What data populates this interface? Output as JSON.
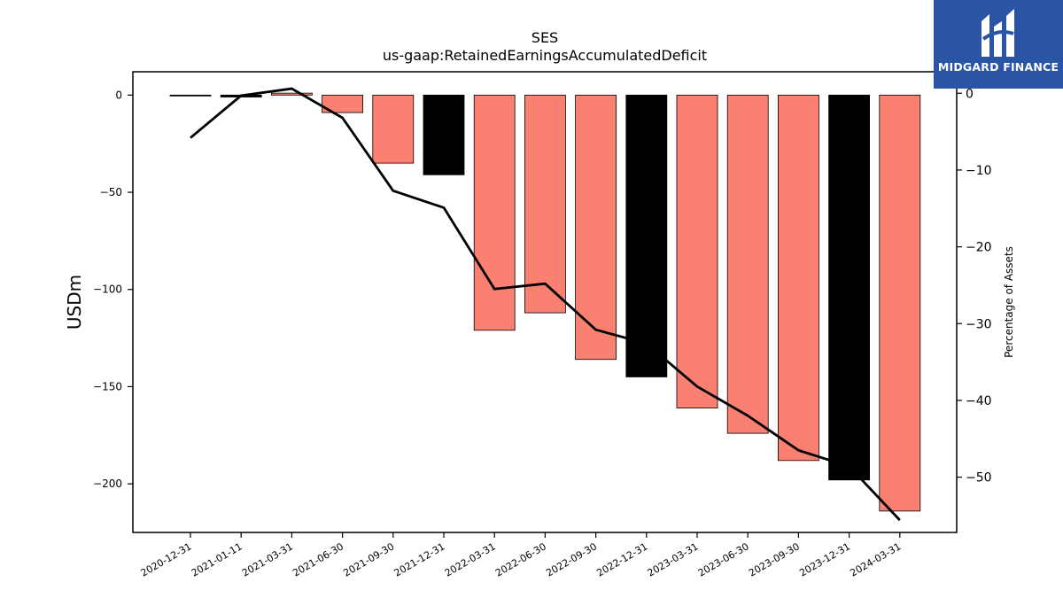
{
  "chart_data": {
    "type": "bar",
    "title": "SES",
    "subtitle": "us-gaap:RetainedEarningsAccumulatedDeficit",
    "ylabel": "USDm",
    "ylabel_right": "Percentage of Assets",
    "categories": [
      "2020-12-31",
      "2021-01-11",
      "2021-03-31",
      "2021-06-30",
      "2021-09-30",
      "2021-12-31",
      "2022-03-31",
      "2022-06-30",
      "2022-09-30",
      "2022-12-31",
      "2023-03-31",
      "2023-06-30",
      "2023-09-30",
      "2023-12-31",
      "2024-03-31"
    ],
    "series": [
      {
        "kind": "bar",
        "axis": "left",
        "values": [
          0,
          -1,
          1,
          -9,
          -35,
          -41,
          -121,
          -112,
          -136,
          -145,
          -161,
          -174,
          -188,
          -198,
          -214
        ],
        "colors": [
          "#000000",
          "#000000",
          "#fa8072",
          "#fa8072",
          "#fa8072",
          "#000000",
          "#fa8072",
          "#fa8072",
          "#fa8072",
          "#000000",
          "#fa8072",
          "#fa8072",
          "#fa8072",
          "#000000",
          "#fa8072"
        ]
      },
      {
        "kind": "line",
        "axis": "right",
        "color": "#000000",
        "values": [
          -5.8,
          -0.3,
          0.6,
          -3.2,
          -12.7,
          -14.9,
          -25.5,
          -24.8,
          -30.8,
          -32.6,
          -38.2,
          -42.0,
          -46.5,
          -48.6,
          -55.6
        ]
      }
    ],
    "ylim": [
      -225,
      12
    ],
    "ylim_right": [
      -57.2,
      2.8
    ],
    "yticks": [
      0,
      -50,
      -100,
      -150,
      -200
    ],
    "yticks_right": [
      0,
      -10,
      -20,
      -30,
      -40,
      -50
    ],
    "grid": false
  },
  "logo": {
    "text": "MIDGARD FINANCE"
  }
}
